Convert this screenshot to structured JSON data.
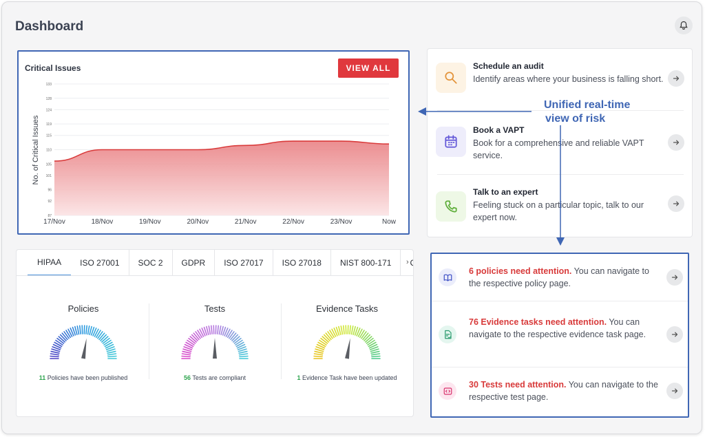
{
  "header": {
    "title": "Dashboard",
    "bell_icon": "bell-icon"
  },
  "chart_card": {
    "view_all_label": "VIEW ALL"
  },
  "chart_data": {
    "type": "area",
    "title": "Critical Issues",
    "xlabel": "",
    "ylabel": "No. of Critical Issues",
    "categories": [
      "17/Nov",
      "18/Nov",
      "19/Nov",
      "20/Nov",
      "21/Nov",
      "22/Nov",
      "23/Nov",
      "Now"
    ],
    "values": [
      106,
      110,
      110,
      110,
      111.5,
      113,
      113,
      112
    ],
    "yticks": [
      "87",
      "92",
      "96",
      "101",
      "105",
      "110",
      "115",
      "119",
      "124",
      "128",
      "133"
    ],
    "ylim": [
      87,
      133
    ],
    "color": "#d93b3b"
  },
  "tabs": {
    "items": [
      "HIPAA",
      "ISO 27001",
      "SOC 2",
      "GDPR",
      "ISO 27017",
      "ISO 27018",
      "NIST 800-171",
      "CSA"
    ],
    "active": "HIPAA",
    "arrow": "›"
  },
  "gauges": [
    {
      "title": "Policies",
      "count": "11",
      "caption": "Policies have been published",
      "value": 0.55,
      "colors": [
        "#4b3ec2",
        "#2f9be0",
        "#3fc7d7"
      ]
    },
    {
      "title": "Tests",
      "count": "56",
      "caption": "Tests are compliant",
      "value": 0.5,
      "colors": [
        "#d946c8",
        "#b67be0",
        "#3fc7d7"
      ]
    },
    {
      "title": "Evidence Tasks",
      "count": "1",
      "caption": "Evidence Task have been updated",
      "value": 0.55,
      "colors": [
        "#e9c21b",
        "#cfe93a",
        "#49c98a"
      ]
    }
  ],
  "actions": [
    {
      "title": "Schedule an audit",
      "desc": "Identify areas where your business is falling short.",
      "icon": "search-icon",
      "icon_bg": "#fdf3e4",
      "icon_color": "#e3933a"
    },
    {
      "title": "Book a VAPT",
      "desc": "Book for a comprehensive and reliable VAPT service.",
      "icon": "calendar-icon",
      "icon_bg": "#eeedfb",
      "icon_color": "#6357d8"
    },
    {
      "title": "Talk to an expert",
      "desc": "Feeling stuck on a particular topic, talk to our expert now.",
      "icon": "phone-icon",
      "icon_bg": "#eef8e6",
      "icon_color": "#5fae3b"
    }
  ],
  "attention": [
    {
      "highlight": "6 policies need attention.",
      "rest": " You can navigate to the respective policy page.",
      "icon": "book-icon",
      "icon_bg": "#ebedfb",
      "icon_color": "#3d4fc4"
    },
    {
      "highlight": "76 Evidence tasks need attention.",
      "rest": " You can navigate to the respective evidence task page.",
      "icon": "document-check-icon",
      "icon_bg": "#e4f6ef",
      "icon_color": "#2a9b6e"
    },
    {
      "highlight": "30 Tests need attention.",
      "rest": " You can navigate to the respective test page.",
      "icon": "code-icon",
      "icon_bg": "#fde6ef",
      "icon_color": "#d8336e"
    }
  ],
  "annotation": {
    "line1": "Unified real-time",
    "line2": "view of risk",
    "color": "#3f66b4"
  }
}
